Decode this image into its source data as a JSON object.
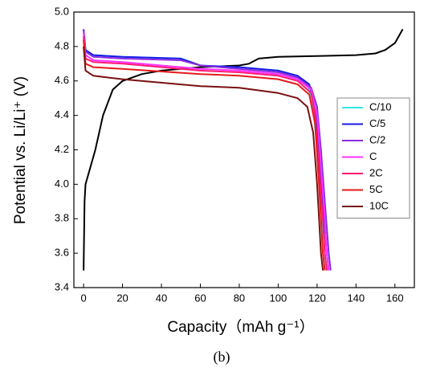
{
  "chart_data": {
    "type": "line",
    "x_label": "Capacity（mAh g⁻¹）",
    "y_label": "Potential vs. Li/Li⁺ (V)",
    "caption": "(b)",
    "xlim": [
      -5,
      170
    ],
    "ylim": [
      3.4,
      5.0
    ],
    "xticks": [
      0,
      20,
      40,
      60,
      80,
      100,
      120,
      140,
      160
    ],
    "yticks": [
      3.4,
      3.6,
      3.8,
      {
        "value": 4,
        "label": "4.0"
      },
      4.2,
      4.4,
      4.6,
      4.8,
      {
        "value": 5,
        "label": "5.0"
      }
    ],
    "legend": "right",
    "series": [
      {
        "color": "#000000",
        "x": [
          0,
          0.5,
          1,
          3,
          6,
          10,
          15,
          20,
          30,
          40,
          60,
          80,
          85,
          90,
          100,
          120,
          140,
          150,
          155,
          160,
          164
        ],
        "values": [
          3.5,
          3.9,
          4.0,
          4.08,
          4.2,
          4.4,
          4.55,
          4.6,
          4.64,
          4.66,
          4.68,
          4.69,
          4.7,
          4.73,
          4.74,
          4.745,
          4.75,
          4.76,
          4.78,
          4.82,
          4.9
        ]
      },
      {
        "name": "C/10",
        "color": "#33e6e6",
        "x": [
          0,
          1,
          5,
          20,
          50,
          55,
          60,
          80,
          100,
          110,
          115,
          118,
          120,
          122,
          124,
          125
        ],
        "values": [
          4.9,
          4.78,
          4.75,
          4.74,
          4.73,
          4.71,
          4.69,
          4.68,
          4.66,
          4.63,
          4.58,
          4.45,
          4.2,
          3.9,
          3.6,
          3.5
        ]
      },
      {
        "name": "C/5",
        "color": "#1a1ae6",
        "x": [
          0,
          1,
          5,
          20,
          50,
          55,
          60,
          80,
          100,
          110,
          116,
          119,
          121,
          123,
          125,
          126
        ],
        "values": [
          4.9,
          4.78,
          4.75,
          4.74,
          4.73,
          4.71,
          4.69,
          4.68,
          4.66,
          4.63,
          4.58,
          4.45,
          4.2,
          3.9,
          3.6,
          3.5
        ]
      },
      {
        "name": "C/2",
        "color": "#8a2be2",
        "x": [
          0,
          1,
          5,
          20,
          50,
          60,
          80,
          100,
          110,
          117,
          120,
          122,
          124,
          126,
          127
        ],
        "values": [
          4.9,
          4.77,
          4.74,
          4.73,
          4.72,
          4.69,
          4.67,
          4.65,
          4.62,
          4.56,
          4.45,
          4.2,
          3.9,
          3.6,
          3.5
        ]
      },
      {
        "name": "C",
        "color": "#ff33ff",
        "x": [
          0,
          1,
          5,
          20,
          60,
          80,
          100,
          110,
          117,
          120,
          122,
          124,
          125,
          126
        ],
        "values": [
          4.88,
          4.75,
          4.72,
          4.71,
          4.67,
          4.66,
          4.64,
          4.61,
          4.55,
          4.4,
          4.1,
          3.8,
          3.6,
          3.5
        ]
      },
      {
        "name": "2C",
        "color": "#ff1a75",
        "x": [
          0,
          1,
          5,
          20,
          60,
          80,
          100,
          110,
          117,
          119,
          121,
          123,
          124,
          125
        ],
        "values": [
          4.86,
          4.73,
          4.71,
          4.7,
          4.66,
          4.65,
          4.63,
          4.6,
          4.53,
          4.4,
          4.1,
          3.8,
          3.6,
          3.5
        ]
      },
      {
        "name": "5C",
        "color": "#e61a1a",
        "x": [
          0,
          1,
          5,
          20,
          60,
          80,
          100,
          110,
          116,
          119,
          121,
          122,
          123,
          124
        ],
        "values": [
          4.84,
          4.7,
          4.68,
          4.67,
          4.64,
          4.63,
          4.61,
          4.58,
          4.52,
          4.35,
          4.0,
          3.8,
          3.6,
          3.5
        ]
      },
      {
        "name": "10C",
        "color": "#7a1010",
        "x": [
          0,
          1,
          5,
          20,
          60,
          80,
          100,
          110,
          115,
          118,
          120,
          121,
          122,
          123
        ],
        "values": [
          4.8,
          4.66,
          4.63,
          4.61,
          4.57,
          4.56,
          4.53,
          4.5,
          4.45,
          4.3,
          4.0,
          3.8,
          3.6,
          3.5
        ]
      }
    ]
  }
}
